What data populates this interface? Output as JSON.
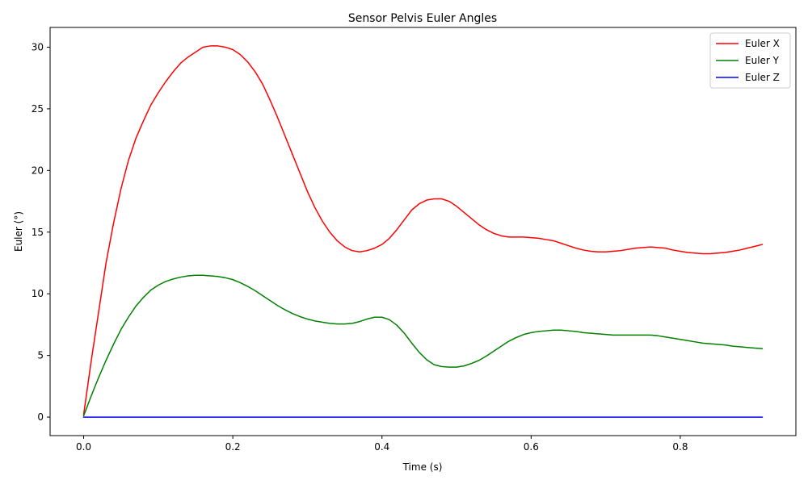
{
  "chart_data": {
    "type": "line",
    "title": "Sensor Pelvis Euler Angles",
    "xlabel": "Time (s)",
    "ylabel": "Euler (°)",
    "xlim": [
      -0.045,
      0.955
    ],
    "ylim": [
      -1.5,
      31.6
    ],
    "xticks": [
      0.0,
      0.2,
      0.4,
      0.6,
      0.8
    ],
    "xtick_labels": [
      "0.0",
      "0.2",
      "0.4",
      "0.6",
      "0.8"
    ],
    "yticks": [
      0,
      5,
      10,
      15,
      20,
      25,
      30
    ],
    "ytick_labels": [
      "0",
      "5",
      "10",
      "15",
      "20",
      "25",
      "30"
    ],
    "grid": false,
    "legend_position": "top-right",
    "series": [
      {
        "name": "Euler X",
        "color": "#ff0000",
        "points": [
          [
            0.0,
            0.2
          ],
          [
            0.01,
            4.5
          ],
          [
            0.02,
            8.5
          ],
          [
            0.03,
            12.5
          ],
          [
            0.04,
            15.7
          ],
          [
            0.05,
            18.5
          ],
          [
            0.06,
            20.8
          ],
          [
            0.07,
            22.6
          ],
          [
            0.08,
            24.0
          ],
          [
            0.09,
            25.3
          ],
          [
            0.1,
            26.3
          ],
          [
            0.11,
            27.2
          ],
          [
            0.12,
            28.0
          ],
          [
            0.13,
            28.7
          ],
          [
            0.14,
            29.2
          ],
          [
            0.15,
            29.6
          ],
          [
            0.16,
            30.0
          ],
          [
            0.17,
            30.1
          ],
          [
            0.18,
            30.1
          ],
          [
            0.19,
            30.0
          ],
          [
            0.2,
            29.8
          ],
          [
            0.21,
            29.4
          ],
          [
            0.22,
            28.8
          ],
          [
            0.23,
            28.0
          ],
          [
            0.24,
            27.0
          ],
          [
            0.25,
            25.7
          ],
          [
            0.26,
            24.3
          ],
          [
            0.27,
            22.8
          ],
          [
            0.28,
            21.3
          ],
          [
            0.29,
            19.8
          ],
          [
            0.3,
            18.3
          ],
          [
            0.31,
            17.0
          ],
          [
            0.32,
            15.9
          ],
          [
            0.33,
            15.0
          ],
          [
            0.34,
            14.3
          ],
          [
            0.35,
            13.8
          ],
          [
            0.36,
            13.5
          ],
          [
            0.37,
            13.4
          ],
          [
            0.38,
            13.5
          ],
          [
            0.39,
            13.7
          ],
          [
            0.4,
            14.0
          ],
          [
            0.41,
            14.5
          ],
          [
            0.42,
            15.2
          ],
          [
            0.43,
            16.0
          ],
          [
            0.44,
            16.8
          ],
          [
            0.45,
            17.3
          ],
          [
            0.46,
            17.6
          ],
          [
            0.47,
            17.7
          ],
          [
            0.48,
            17.7
          ],
          [
            0.49,
            17.5
          ],
          [
            0.5,
            17.1
          ],
          [
            0.51,
            16.6
          ],
          [
            0.52,
            16.1
          ],
          [
            0.53,
            15.6
          ],
          [
            0.54,
            15.2
          ],
          [
            0.55,
            14.9
          ],
          [
            0.56,
            14.7
          ],
          [
            0.57,
            14.6
          ],
          [
            0.58,
            14.6
          ],
          [
            0.59,
            14.6
          ],
          [
            0.6,
            14.55
          ],
          [
            0.61,
            14.5
          ],
          [
            0.62,
            14.4
          ],
          [
            0.63,
            14.3
          ],
          [
            0.64,
            14.1
          ],
          [
            0.65,
            13.9
          ],
          [
            0.66,
            13.7
          ],
          [
            0.67,
            13.55
          ],
          [
            0.68,
            13.45
          ],
          [
            0.69,
            13.4
          ],
          [
            0.7,
            13.4
          ],
          [
            0.71,
            13.45
          ],
          [
            0.72,
            13.5
          ],
          [
            0.73,
            13.6
          ],
          [
            0.74,
            13.7
          ],
          [
            0.75,
            13.75
          ],
          [
            0.76,
            13.8
          ],
          [
            0.77,
            13.75
          ],
          [
            0.78,
            13.7
          ],
          [
            0.79,
            13.55
          ],
          [
            0.8,
            13.45
          ],
          [
            0.81,
            13.35
          ],
          [
            0.82,
            13.3
          ],
          [
            0.83,
            13.25
          ],
          [
            0.84,
            13.25
          ],
          [
            0.85,
            13.3
          ],
          [
            0.86,
            13.35
          ],
          [
            0.87,
            13.45
          ],
          [
            0.88,
            13.55
          ],
          [
            0.89,
            13.7
          ],
          [
            0.9,
            13.85
          ],
          [
            0.91,
            14.0
          ]
        ]
      },
      {
        "name": "Euler Y",
        "color": "#008000",
        "points": [
          [
            0.0,
            0.1
          ],
          [
            0.01,
            1.7
          ],
          [
            0.02,
            3.2
          ],
          [
            0.03,
            4.6
          ],
          [
            0.04,
            5.9
          ],
          [
            0.05,
            7.1
          ],
          [
            0.06,
            8.1
          ],
          [
            0.07,
            9.0
          ],
          [
            0.08,
            9.7
          ],
          [
            0.09,
            10.3
          ],
          [
            0.1,
            10.7
          ],
          [
            0.11,
            11.0
          ],
          [
            0.12,
            11.2
          ],
          [
            0.13,
            11.35
          ],
          [
            0.14,
            11.45
          ],
          [
            0.15,
            11.5
          ],
          [
            0.16,
            11.5
          ],
          [
            0.17,
            11.45
          ],
          [
            0.18,
            11.4
          ],
          [
            0.19,
            11.3
          ],
          [
            0.2,
            11.15
          ],
          [
            0.21,
            10.9
          ],
          [
            0.22,
            10.6
          ],
          [
            0.23,
            10.25
          ],
          [
            0.24,
            9.85
          ],
          [
            0.25,
            9.45
          ],
          [
            0.26,
            9.05
          ],
          [
            0.27,
            8.7
          ],
          [
            0.28,
            8.4
          ],
          [
            0.29,
            8.15
          ],
          [
            0.3,
            7.95
          ],
          [
            0.31,
            7.8
          ],
          [
            0.32,
            7.7
          ],
          [
            0.33,
            7.6
          ],
          [
            0.34,
            7.55
          ],
          [
            0.35,
            7.55
          ],
          [
            0.36,
            7.6
          ],
          [
            0.37,
            7.75
          ],
          [
            0.38,
            7.95
          ],
          [
            0.39,
            8.1
          ],
          [
            0.4,
            8.1
          ],
          [
            0.41,
            7.9
          ],
          [
            0.42,
            7.45
          ],
          [
            0.43,
            6.8
          ],
          [
            0.44,
            6.0
          ],
          [
            0.45,
            5.25
          ],
          [
            0.46,
            4.65
          ],
          [
            0.47,
            4.25
          ],
          [
            0.48,
            4.1
          ],
          [
            0.49,
            4.05
          ],
          [
            0.5,
            4.05
          ],
          [
            0.51,
            4.15
          ],
          [
            0.52,
            4.35
          ],
          [
            0.53,
            4.6
          ],
          [
            0.54,
            4.95
          ],
          [
            0.55,
            5.35
          ],
          [
            0.56,
            5.75
          ],
          [
            0.57,
            6.15
          ],
          [
            0.58,
            6.45
          ],
          [
            0.59,
            6.7
          ],
          [
            0.6,
            6.85
          ],
          [
            0.61,
            6.95
          ],
          [
            0.62,
            7.0
          ],
          [
            0.63,
            7.05
          ],
          [
            0.64,
            7.05
          ],
          [
            0.65,
            7.0
          ],
          [
            0.66,
            6.95
          ],
          [
            0.67,
            6.85
          ],
          [
            0.68,
            6.8
          ],
          [
            0.69,
            6.75
          ],
          [
            0.7,
            6.7
          ],
          [
            0.71,
            6.65
          ],
          [
            0.72,
            6.65
          ],
          [
            0.73,
            6.65
          ],
          [
            0.74,
            6.65
          ],
          [
            0.75,
            6.65
          ],
          [
            0.76,
            6.65
          ],
          [
            0.77,
            6.6
          ],
          [
            0.78,
            6.5
          ],
          [
            0.79,
            6.4
          ],
          [
            0.8,
            6.3
          ],
          [
            0.81,
            6.2
          ],
          [
            0.82,
            6.1
          ],
          [
            0.83,
            6.0
          ],
          [
            0.84,
            5.95
          ],
          [
            0.85,
            5.9
          ],
          [
            0.86,
            5.85
          ],
          [
            0.87,
            5.75
          ],
          [
            0.88,
            5.7
          ],
          [
            0.89,
            5.65
          ],
          [
            0.9,
            5.6
          ],
          [
            0.91,
            5.55
          ]
        ]
      },
      {
        "name": "Euler Z",
        "color": "#0000ff",
        "points": [
          [
            0.0,
            0.0
          ],
          [
            0.91,
            0.0
          ]
        ]
      }
    ]
  }
}
